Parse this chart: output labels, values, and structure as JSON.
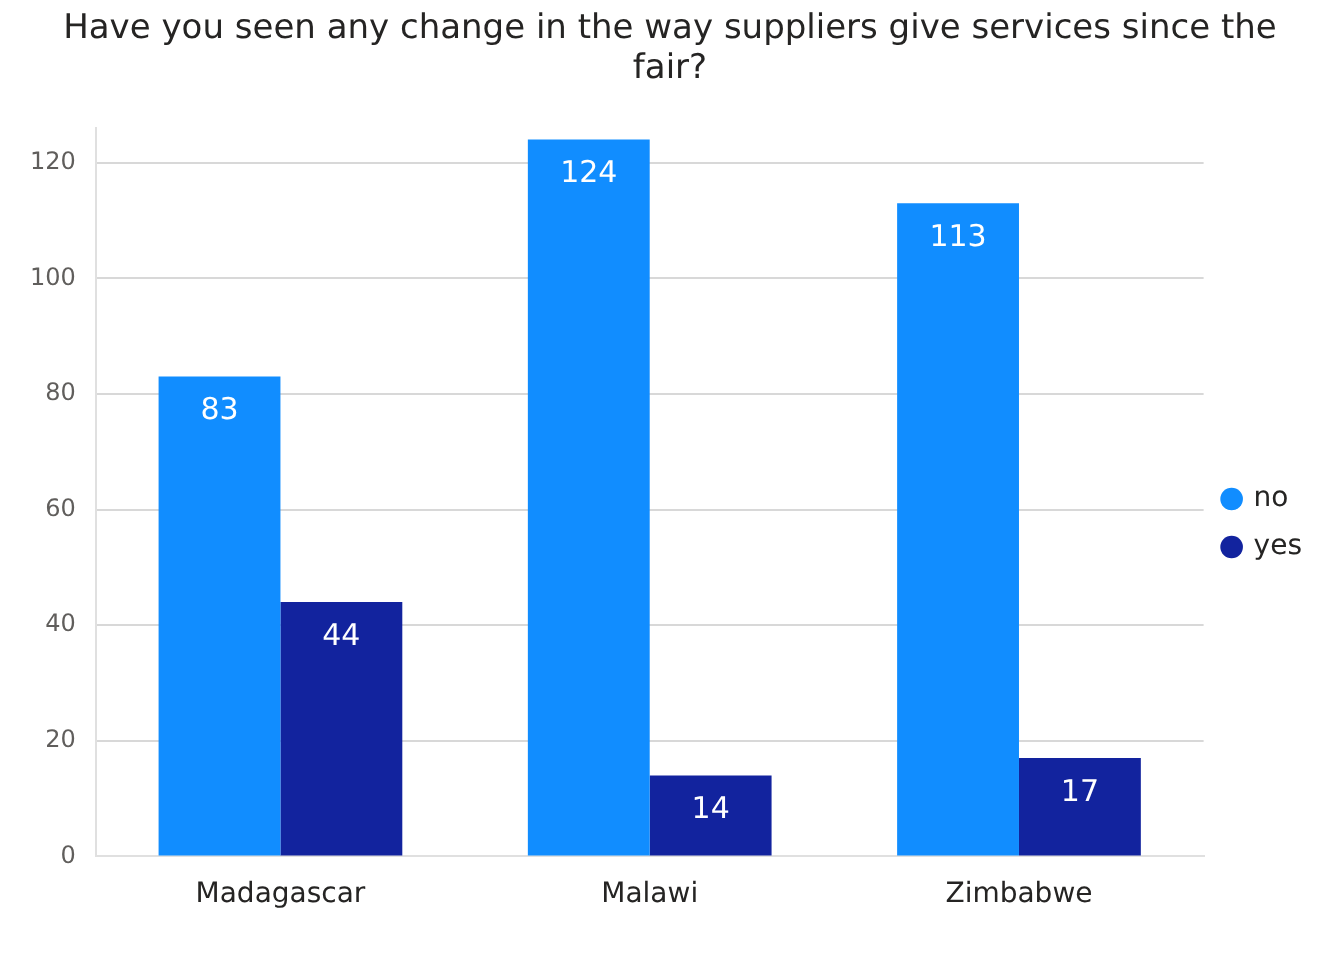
{
  "chart_data": {
    "type": "bar",
    "title": "Have you seen any change in the way suppliers give services since the fair?",
    "categories": [
      "Madagascar",
      "Malawi",
      "Zimbabwe"
    ],
    "series": [
      {
        "name": "no",
        "color": "#118dff",
        "values": [
          83,
          124,
          113
        ]
      },
      {
        "name": "yes",
        "color": "#12239e",
        "values": [
          44,
          14,
          17
        ]
      }
    ],
    "ylim": [
      0,
      126
    ],
    "yticks": [
      0,
      20,
      40,
      60,
      80,
      100,
      120
    ],
    "grid": "y",
    "legend": "right",
    "data_labels": true
  }
}
